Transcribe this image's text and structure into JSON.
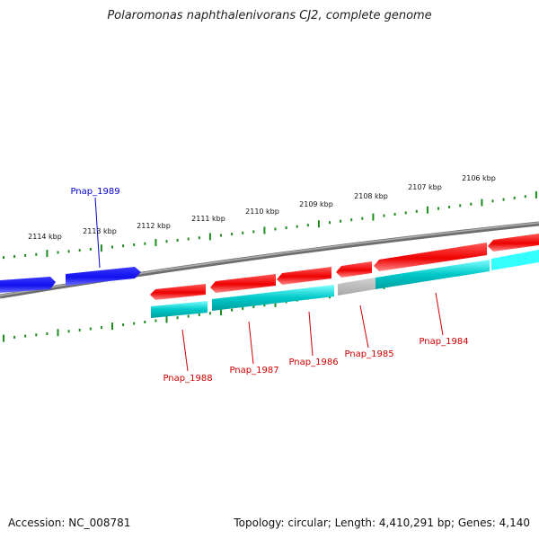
{
  "title": "Polaromonas naphthalenivorans CJ2, complete genome",
  "footer": {
    "accession": "Accession: NC_008781",
    "summary": "Topology: circular; Length: 4,410,291 bp; Genes: 4,140"
  },
  "colors": {
    "axis_ticks": "#1e8c1e",
    "backbone": "#808080",
    "gene_forward": "#1010ee",
    "gene_reverse": "#ee0000",
    "cds_reverse": "#00c8c8",
    "cds_unannotated": "#b4b4b4",
    "label_forward": "#0000cc",
    "label_reverse": "#cc0000"
  },
  "kbp_labels": [
    "2114 kbp",
    "2113 kbp",
    "2112 kbp",
    "2111 kbp",
    "2110 kbp",
    "2109 kbp",
    "2108 kbp",
    "2107 kbp",
    "2106 kbp"
  ],
  "gene_labels": [
    {
      "text": "Pnap_1989",
      "strand": "forward"
    },
    {
      "text": "Pnap_1988",
      "strand": "reverse"
    },
    {
      "text": "Pnap_1987",
      "strand": "reverse"
    },
    {
      "text": "Pnap_1986",
      "strand": "reverse"
    },
    {
      "text": "Pnap_1985",
      "strand": "reverse"
    },
    {
      "text": "Pnap_1984",
      "strand": "reverse"
    }
  ]
}
